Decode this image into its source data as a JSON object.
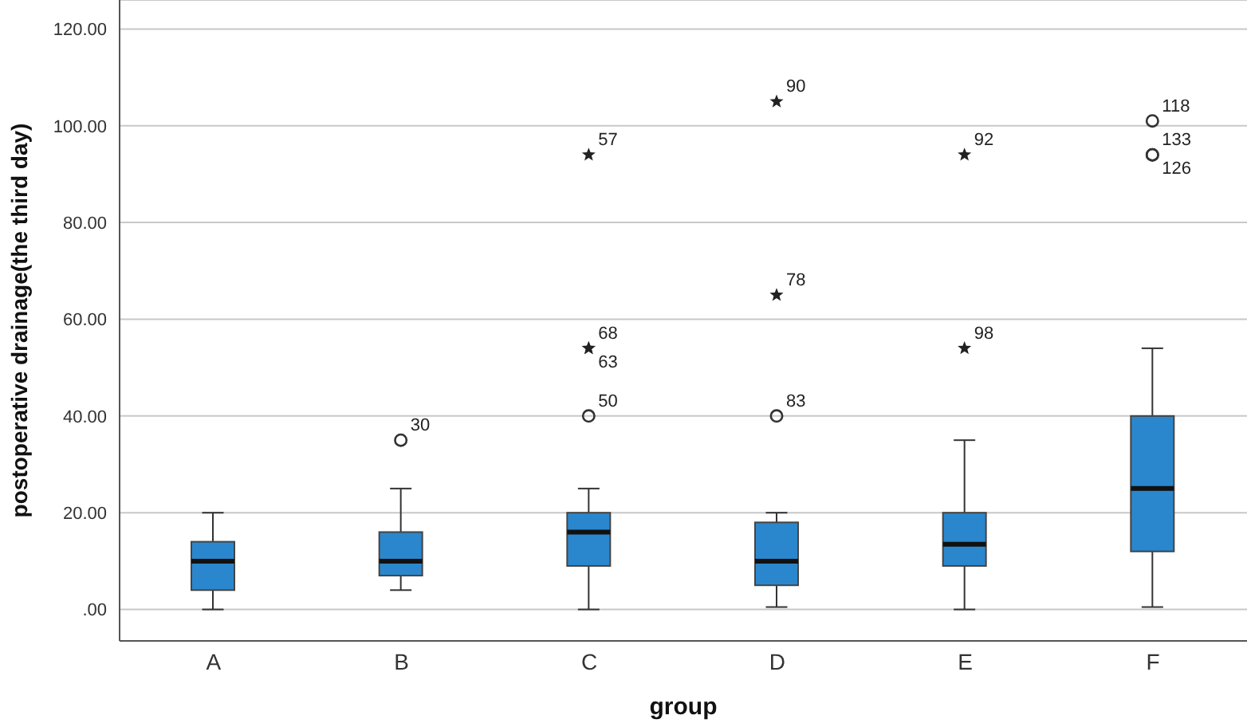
{
  "chart_data": {
    "type": "box",
    "xlabel": "group",
    "ylabel": "postoperative drainage(the third day)",
    "categories": [
      "A",
      "B",
      "C",
      "D",
      "E",
      "F"
    ],
    "color": "#2b87cd",
    "boxes": [
      {
        "low": 0,
        "q1": 4,
        "median": 10,
        "q3": 14,
        "high": 20
      },
      {
        "low": 4,
        "q1": 7,
        "median": 10,
        "q3": 16,
        "high": 25,
        "outliers": [
          35
        ]
      },
      {
        "low": 0,
        "q1": 9,
        "median": 16,
        "q3": 20,
        "high": 25,
        "outliers": [
          40,
          54,
          54,
          94
        ]
      },
      {
        "low": 0.5,
        "q1": 5,
        "median": 10,
        "q3": 18,
        "high": 20,
        "outliers": [
          40,
          65,
          105
        ]
      },
      {
        "low": 0,
        "q1": 9,
        "median": 13.5,
        "q3": 20,
        "high": 35,
        "outliers": [
          54,
          94
        ]
      },
      {
        "low": 0.5,
        "q1": 12,
        "median": 25,
        "q3": 40,
        "high": 54,
        "outliers": [
          101,
          94,
          94
        ]
      }
    ],
    "ylim": [
      -6.5,
      126
    ],
    "yticks": [
      {
        "value": 0,
        "label": ".00"
      },
      {
        "value": 20,
        "label": "20.00"
      },
      {
        "value": 40,
        "label": "40.00"
      },
      {
        "value": 60,
        "label": "60.00"
      },
      {
        "value": 80,
        "label": "80.00"
      },
      {
        "value": 100,
        "label": "100.00"
      },
      {
        "value": 120,
        "label": "120.00"
      }
    ],
    "grid": "y",
    "legend": false,
    "annotations": [
      "30",
      "50",
      "68",
      "63",
      "57",
      "83",
      "78",
      "90",
      "98",
      "92",
      "118",
      "133",
      "126"
    ]
  }
}
